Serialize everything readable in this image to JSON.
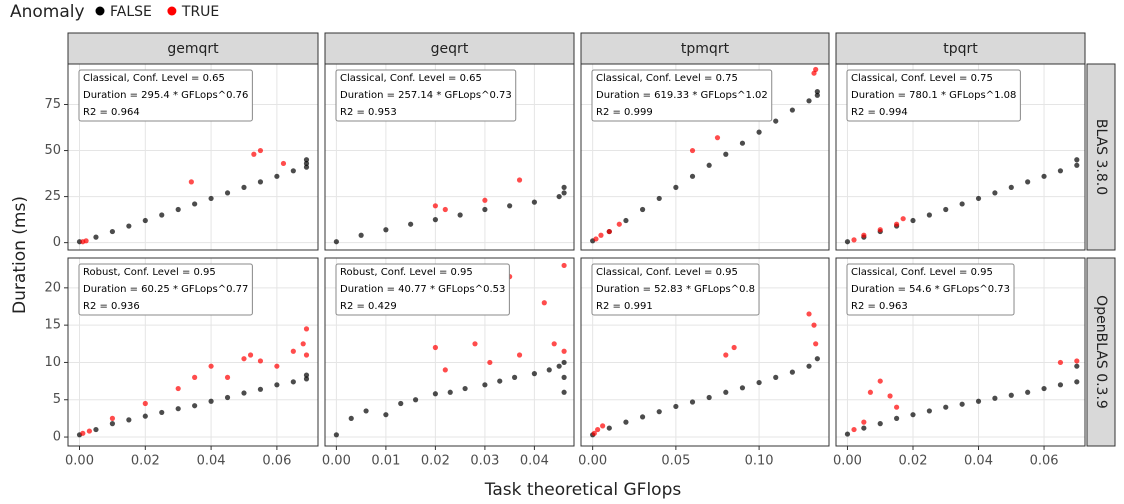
{
  "chart_data": {
    "type": "scatter",
    "x_label": "Task theoretical GFlops",
    "y_label": "Duration (ms)",
    "legend_title": "Anomaly",
    "grid": true,
    "groups": [
      {
        "name": "FALSE",
        "color": "#000000"
      },
      {
        "name": "TRUE",
        "color": "#ff0000"
      }
    ],
    "columns": [
      {
        "label": "gemqrt",
        "xlim": [
          -0.0035,
          0.0725
        ],
        "xticks": [
          {
            "value": 0,
            "label": "0.00"
          },
          {
            "value": 0.02,
            "label": "0.02"
          },
          {
            "value": 0.04,
            "label": "0.04"
          },
          {
            "value": 0.06,
            "label": "0.06"
          }
        ]
      },
      {
        "label": "geqrt",
        "xlim": [
          -0.0023,
          0.048
        ],
        "xticks": [
          {
            "value": 0,
            "label": "0.00"
          },
          {
            "value": 0.01,
            "label": "0.01"
          },
          {
            "value": 0.02,
            "label": "0.02"
          },
          {
            "value": 0.03,
            "label": "0.03"
          },
          {
            "value": 0.04,
            "label": "0.04"
          }
        ]
      },
      {
        "label": "tpmqrt",
        "xlim": [
          -0.007,
          0.142
        ],
        "xticks": [
          {
            "value": 0,
            "label": "0.00"
          },
          {
            "value": 0.05,
            "label": "0.05"
          },
          {
            "value": 0.1,
            "label": "0.10"
          }
        ]
      },
      {
        "label": "tpqrt",
        "xlim": [
          -0.0035,
          0.0725
        ],
        "xticks": [
          {
            "value": 0,
            "label": "0.00"
          },
          {
            "value": 0.02,
            "label": "0.02"
          },
          {
            "value": 0.04,
            "label": "0.04"
          },
          {
            "value": 0.06,
            "label": "0.06"
          }
        ]
      }
    ],
    "rows": [
      {
        "label": "BLAS 3.8.0",
        "ylim": [
          -4,
          97
        ],
        "yticks": [
          0,
          25,
          50,
          75
        ],
        "panels": [
          {
            "annotation": [
              "Classical, Conf. Level = 0.65",
              "Duration = 295.4 * GFLops^0.76",
              "R2 = 0.964"
            ],
            "series": [
              {
                "x": [
                  0,
                  0.005,
                  0.01,
                  0.015,
                  0.02,
                  0.025,
                  0.03,
                  0.035,
                  0.04,
                  0.045,
                  0.05,
                  0.055,
                  0.06,
                  0.065,
                  0.069,
                  0.069,
                  0.069
                ],
                "values": [
                  0.5,
                  3,
                  6,
                  9,
                  12,
                  15,
                  18,
                  21,
                  24,
                  27,
                  30,
                  33,
                  36,
                  39,
                  41,
                  43,
                  45
                ]
              },
              {
                "x": [
                  0.001,
                  0.002,
                  0.034,
                  0.053,
                  0.055,
                  0.062
                ],
                "values": [
                  0.5,
                  1,
                  33,
                  48,
                  50,
                  43
                ]
              }
            ]
          },
          {
            "annotation": [
              "Classical, Conf. Level = 0.65",
              "Duration = 257.14 * GFLops^0.73",
              "R2 = 0.953"
            ],
            "series": [
              {
                "x": [
                  0,
                  0.005,
                  0.01,
                  0.015,
                  0.02,
                  0.025,
                  0.03,
                  0.035,
                  0.04,
                  0.045,
                  0.046,
                  0.046
                ],
                "values": [
                  0.5,
                  4,
                  7,
                  10,
                  12.5,
                  15,
                  18,
                  20,
                  22,
                  25,
                  27,
                  30
                ]
              },
              {
                "x": [
                  0.02,
                  0.022,
                  0.03,
                  0.037
                ],
                "values": [
                  20,
                  18,
                  23,
                  34
                ]
              }
            ]
          },
          {
            "annotation": [
              "Classical, Conf. Level = 0.75",
              "Duration = 619.33 * GFLops^1.02",
              "R2 = 0.999"
            ],
            "series": [
              {
                "x": [
                  0,
                  0.01,
                  0.02,
                  0.03,
                  0.04,
                  0.05,
                  0.06,
                  0.07,
                  0.08,
                  0.09,
                  0.1,
                  0.11,
                  0.12,
                  0.13,
                  0.135,
                  0.135
                ],
                "values": [
                  1,
                  6,
                  12,
                  18,
                  24,
                  30,
                  36,
                  42,
                  48,
                  54,
                  60,
                  66,
                  72,
                  77,
                  80,
                  82
                ]
              },
              {
                "x": [
                  0.002,
                  0.005,
                  0.01,
                  0.016,
                  0.06,
                  0.075,
                  0.133,
                  0.134
                ],
                "values": [
                  2,
                  4,
                  6,
                  10,
                  50,
                  57,
                  92,
                  94
                ]
              }
            ]
          },
          {
            "annotation": [
              "Classical, Conf. Level = 0.75",
              "Duration = 780.1 * GFLops^1.08",
              "R2 = 0.994"
            ],
            "series": [
              {
                "x": [
                  0,
                  0.005,
                  0.01,
                  0.015,
                  0.02,
                  0.025,
                  0.03,
                  0.035,
                  0.04,
                  0.045,
                  0.05,
                  0.055,
                  0.06,
                  0.065,
                  0.07,
                  0.07
                ],
                "values": [
                  0.5,
                  3,
                  6,
                  9,
                  12,
                  15,
                  18,
                  21,
                  24,
                  27,
                  30,
                  33,
                  36,
                  39,
                  42,
                  45
                ]
              },
              {
                "x": [
                  0.002,
                  0.005,
                  0.01,
                  0.015,
                  0.017
                ],
                "values": [
                  1.5,
                  4,
                  7,
                  10,
                  13
                ]
              }
            ]
          }
        ]
      },
      {
        "label": "OpenBLAS 0.3.9",
        "ylim": [
          -1.2,
          24
        ],
        "yticks": [
          0,
          5,
          10,
          15,
          20
        ],
        "panels": [
          {
            "annotation": [
              "Robust, Conf. Level = 0.95",
              "Duration = 60.25 * GFLops^0.77",
              "R2 = 0.936"
            ],
            "series": [
              {
                "x": [
                  0,
                  0.005,
                  0.01,
                  0.015,
                  0.02,
                  0.025,
                  0.03,
                  0.035,
                  0.04,
                  0.045,
                  0.05,
                  0.055,
                  0.06,
                  0.065,
                  0.069,
                  0.069
                ],
                "values": [
                  0.3,
                  1,
                  1.8,
                  2.3,
                  2.8,
                  3.3,
                  3.8,
                  4.2,
                  4.8,
                  5.3,
                  5.9,
                  6.4,
                  7,
                  7.4,
                  7.8,
                  8.3
                ]
              },
              {
                "x": [
                  0.001,
                  0.003,
                  0.01,
                  0.02,
                  0.03,
                  0.035,
                  0.04,
                  0.045,
                  0.05,
                  0.052,
                  0.055,
                  0.06,
                  0.065,
                  0.068,
                  0.069,
                  0.069
                ],
                "values": [
                  0.5,
                  0.8,
                  2.5,
                  4.5,
                  6.5,
                  8,
                  9.5,
                  8,
                  10.5,
                  11,
                  10.2,
                  9.5,
                  11.5,
                  12.5,
                  14.5,
                  11
                ]
              }
            ]
          },
          {
            "annotation": [
              "Robust, Conf. Level = 0.95",
              "Duration = 40.77 * GFLops^0.53",
              "R2 = 0.429"
            ],
            "series": [
              {
                "x": [
                  0,
                  0.003,
                  0.006,
                  0.01,
                  0.013,
                  0.016,
                  0.02,
                  0.023,
                  0.026,
                  0.03,
                  0.033,
                  0.036,
                  0.04,
                  0.043,
                  0.045,
                  0.046,
                  0.046,
                  0.046
                ],
                "values": [
                  0.3,
                  2.5,
                  3.5,
                  3,
                  4.5,
                  5,
                  5.8,
                  6,
                  6.5,
                  7,
                  7.5,
                  8,
                  8.5,
                  9,
                  9.5,
                  6,
                  8,
                  10
                ]
              },
              {
                "x": [
                  0.02,
                  0.022,
                  0.028,
                  0.031,
                  0.035,
                  0.037,
                  0.042,
                  0.044,
                  0.046,
                  0.046
                ],
                "values": [
                  12,
                  9,
                  12.5,
                  10,
                  21.5,
                  11,
                  18,
                  12.5,
                  23,
                  11.5
                ]
              }
            ]
          },
          {
            "annotation": [
              "Classical, Conf. Level = 0.95",
              "Duration = 52.83 * GFLops^0.8",
              "R2 = 0.991"
            ],
            "series": [
              {
                "x": [
                  0,
                  0.01,
                  0.02,
                  0.03,
                  0.04,
                  0.05,
                  0.06,
                  0.07,
                  0.08,
                  0.09,
                  0.1,
                  0.11,
                  0.12,
                  0.13,
                  0.135
                ],
                "values": [
                  0.3,
                  1.2,
                  2,
                  2.7,
                  3.4,
                  4.1,
                  4.7,
                  5.3,
                  6,
                  6.6,
                  7.3,
                  8,
                  8.7,
                  9.5,
                  10.5
                ]
              },
              {
                "x": [
                  0.001,
                  0.003,
                  0.006,
                  0.08,
                  0.085,
                  0.13,
                  0.133,
                  0.134
                ],
                "values": [
                  0.5,
                  1,
                  1.5,
                  11,
                  12,
                  16.5,
                  15,
                  12.5
                ]
              }
            ]
          },
          {
            "annotation": [
              "Classical, Conf. Level = 0.95",
              "Duration = 54.6 * GFLops^0.73",
              "R2 = 0.963"
            ],
            "series": [
              {
                "x": [
                  0,
                  0.005,
                  0.01,
                  0.015,
                  0.02,
                  0.025,
                  0.03,
                  0.035,
                  0.04,
                  0.045,
                  0.05,
                  0.055,
                  0.06,
                  0.065,
                  0.07,
                  0.07
                ],
                "values": [
                  0.4,
                  1.2,
                  1.8,
                  2.5,
                  3,
                  3.5,
                  4,
                  4.4,
                  4.8,
                  5.2,
                  5.6,
                  6,
                  6.5,
                  7,
                  7.4,
                  9.5
                ]
              },
              {
                "x": [
                  0.002,
                  0.005,
                  0.007,
                  0.01,
                  0.013,
                  0.015,
                  0.065,
                  0.07
                ],
                "values": [
                  1,
                  2,
                  6,
                  7.5,
                  5.5,
                  4,
                  10,
                  10.2
                ]
              }
            ]
          }
        ]
      }
    ]
  }
}
